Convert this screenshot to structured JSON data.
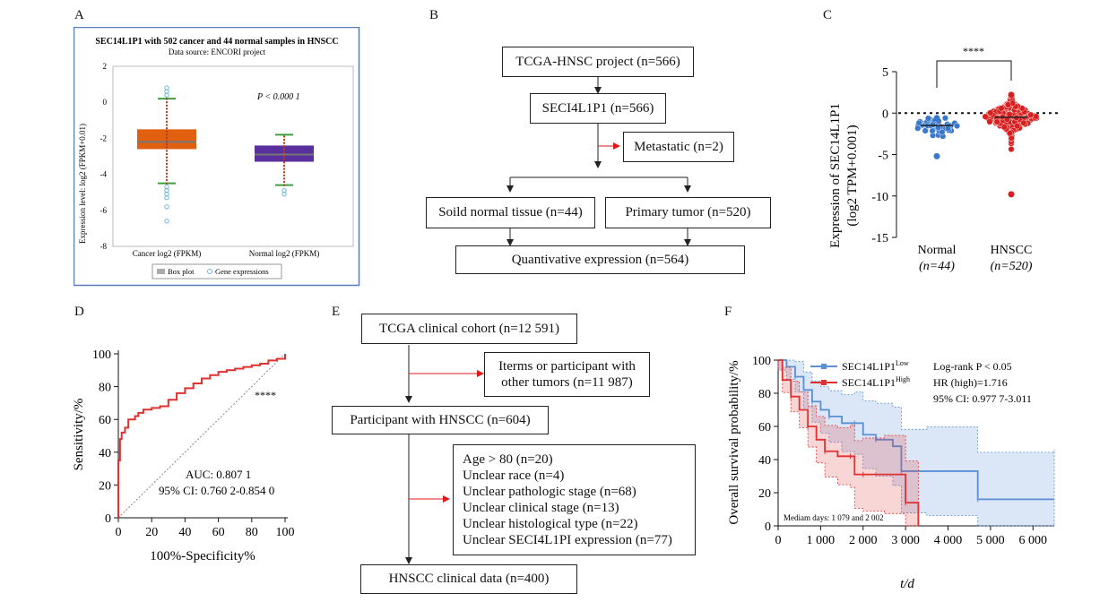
{
  "panels": {
    "A": {
      "label": "A",
      "title": "SEC14L1P1 with 502 cancer and 44 normal samples in HNSCC",
      "subtitle": "Data source: ENCORI project",
      "ylabel": "Expression level: log2 (FPKM+0.01)",
      "pvalue": "P < 0.000 1",
      "legend": [
        "Box plot",
        "Gene expressions"
      ]
    },
    "B": {
      "label": "B",
      "boxes": {
        "project": "TCGA-HNSC project (n=566)",
        "gene": "SECI4L1P1 (n=566)",
        "metastatic": "Metastatic (n=2)",
        "normal": "Soild normal tissue (n=44)",
        "primary": "Primary tumor (n=520)",
        "quant": "Quantivative expression (n=564)"
      }
    },
    "C": {
      "label": "C",
      "ylabel_line1": "Expression of SEC14L1P1",
      "ylabel_line2": "(log2 TPM+0.001)",
      "significance": "****",
      "groups": [
        {
          "name": "Normal",
          "n": "(n=44)"
        },
        {
          "name": "HNSCC",
          "n": "(n=520)"
        }
      ]
    },
    "D": {
      "label": "D",
      "xlabel": "100%-Specificity%",
      "ylabel": "Sensitivity/%",
      "significance": "****",
      "auc": "AUC: 0.807 1",
      "ci": "95% CI: 0.760 2-0.854 0"
    },
    "E": {
      "label": "E",
      "boxes": {
        "cohort": "TCGA clinical cohort (n=12 591)",
        "other": [
          "Iterms or participant with",
          "other tumors (n=11 987)"
        ],
        "participant": "Participant with HNSCC (n=604)",
        "exclusions": [
          "Age > 80 (n=20)",
          "Unclear race (n=4)",
          "Unclear pathologic stage (n=68)",
          "Unclear clinical stage (n=13)",
          "Unclear histological type (n=22)",
          "Unclear SECI4L1PI expression (n=77)"
        ],
        "final": "HNSCC clinical data (n=400)"
      }
    },
    "F": {
      "label": "F",
      "ylabel": "Overall survival probability/%",
      "xlabel": "t/d",
      "legend": [
        {
          "name": "SEC14L1P1",
          "sup": "Low",
          "color": "#5b8fd6"
        },
        {
          "name": "SEC14L1P1",
          "sup": "High",
          "color": "#e03030"
        }
      ],
      "stats": [
        "Log-rank P < 0.05",
        "HR (high)=1.716",
        "95% CI: 0.977 7-3.011"
      ],
      "median": "Mediam days: 1 079 and 2 002"
    }
  },
  "chart_data": [
    {
      "type": "box",
      "panel": "A",
      "categories": [
        "Cancer log2 (FPKM)",
        "Normal log2 (FPKM)"
      ],
      "boxes": [
        {
          "q1": -2.6,
          "median": -2.2,
          "q3": -1.5,
          "whisker_low": -4.5,
          "whisker_high": 0.2,
          "outliers": [
            0.4,
            0.6,
            0.8,
            -4.7,
            -4.9,
            -5.1,
            -5.3,
            -5.8,
            -6.6
          ],
          "color": "#e06010"
        },
        {
          "q1": -3.3,
          "median": -2.9,
          "q3": -2.4,
          "whisker_low": -4.6,
          "whisker_high": -1.8,
          "outliers": [
            -4.9,
            -5.1
          ],
          "color": "#5a2f9e"
        }
      ],
      "ylim": [
        -8,
        2
      ],
      "yticks": [
        -8,
        -6,
        -4,
        -2,
        0,
        2
      ]
    },
    {
      "type": "scatter",
      "panel": "C",
      "categories": [
        "Normal",
        "HNSCC"
      ],
      "ylim": [
        -15,
        5
      ],
      "yticks": [
        -15,
        -10,
        -5,
        0,
        5
      ],
      "reference_line": 0,
      "series": [
        {
          "name": "Normal",
          "median": -1.5,
          "min": -5.2,
          "max": -0.6,
          "color": "#3a78c9"
        },
        {
          "name": "HNSCC",
          "median": -0.5,
          "min": -9.8,
          "max": 2.2,
          "color": "#d81e1e"
        }
      ]
    },
    {
      "type": "line",
      "panel": "D",
      "xlim": [
        0,
        100
      ],
      "ylim": [
        0,
        100
      ],
      "xticks": [
        0,
        20,
        40,
        60,
        80,
        100
      ],
      "yticks": [
        0,
        20,
        40,
        60,
        80,
        100
      ],
      "series": [
        {
          "name": "ROC",
          "x": [
            0,
            0,
            1,
            2,
            4,
            6,
            10,
            12,
            15,
            20,
            25,
            30,
            35,
            40,
            45,
            50,
            55,
            60,
            65,
            70,
            75,
            80,
            85,
            90,
            95,
            100
          ],
          "y": [
            0,
            35,
            48,
            52,
            55,
            60,
            62,
            64,
            66,
            67,
            68,
            72,
            76,
            79,
            82,
            85,
            87,
            89,
            90,
            91,
            92,
            93,
            94,
            96,
            97,
            100
          ]
        }
      ]
    },
    {
      "type": "line",
      "panel": "F",
      "xlim": [
        0,
        6500
      ],
      "ylim": [
        0,
        100
      ],
      "xticks": [
        0,
        1000,
        2000,
        3000,
        4000,
        5000,
        6000
      ],
      "xtick_labels": [
        "0",
        "1 000",
        "2 000",
        "3 000",
        "4 000",
        "5 000",
        "6 000"
      ],
      "yticks": [
        0,
        20,
        40,
        60,
        80,
        100
      ],
      "series": [
        {
          "name": "SEC14L1P1 Low",
          "x": [
            0,
            200,
            400,
            600,
            800,
            1000,
            1200,
            1500,
            1800,
            2000,
            2300,
            2700,
            2900,
            3500,
            4700,
            6500
          ],
          "y": [
            100,
            96,
            90,
            82,
            75,
            70,
            66,
            62,
            62,
            55,
            52,
            48,
            33,
            33,
            16,
            16
          ]
        },
        {
          "name": "SEC14L1P1 High",
          "x": [
            0,
            100,
            300,
            500,
            700,
            900,
            1100,
            1400,
            1700,
            1800,
            2000,
            2500,
            3000,
            3300
          ],
          "y": [
            100,
            88,
            78,
            70,
            60,
            52,
            45,
            42,
            42,
            31,
            31,
            31,
            14,
            0
          ]
        }
      ]
    }
  ]
}
